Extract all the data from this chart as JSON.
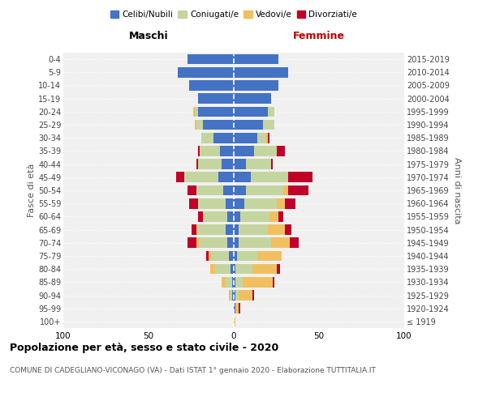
{
  "age_groups": [
    "100+",
    "95-99",
    "90-94",
    "85-89",
    "80-84",
    "75-79",
    "70-74",
    "65-69",
    "60-64",
    "55-59",
    "50-54",
    "45-49",
    "40-44",
    "35-39",
    "30-34",
    "25-29",
    "20-24",
    "15-19",
    "10-14",
    "5-9",
    "0-4"
  ],
  "birth_years": [
    "≤ 1919",
    "1920-1924",
    "1925-1929",
    "1930-1934",
    "1935-1939",
    "1940-1944",
    "1945-1949",
    "1950-1954",
    "1955-1959",
    "1960-1964",
    "1965-1969",
    "1970-1974",
    "1975-1979",
    "1980-1984",
    "1985-1989",
    "1990-1994",
    "1995-1999",
    "2000-2004",
    "2005-2009",
    "2010-2014",
    "2015-2019"
  ],
  "colors": {
    "celibi": "#4472c4",
    "coniugati": "#c5d5a0",
    "vedovi": "#f0c060",
    "divorziati": "#c0002a"
  },
  "maschi": {
    "celibi": [
      0,
      0,
      1,
      1,
      2,
      3,
      4,
      5,
      4,
      5,
      6,
      9,
      7,
      8,
      12,
      18,
      21,
      21,
      26,
      33,
      27
    ],
    "coniugati": [
      0,
      0,
      1,
      4,
      9,
      10,
      16,
      16,
      14,
      16,
      16,
      20,
      14,
      12,
      7,
      4,
      2,
      0,
      0,
      0,
      0
    ],
    "vedovi": [
      0,
      0,
      1,
      2,
      3,
      2,
      2,
      1,
      0,
      0,
      0,
      0,
      0,
      0,
      0,
      1,
      1,
      0,
      0,
      0,
      0
    ],
    "divorziati": [
      0,
      0,
      0,
      0,
      0,
      1,
      5,
      3,
      3,
      5,
      5,
      5,
      1,
      1,
      0,
      0,
      0,
      0,
      0,
      0,
      0
    ]
  },
  "femmine": {
    "celibi": [
      0,
      1,
      1,
      1,
      1,
      2,
      3,
      3,
      4,
      6,
      7,
      10,
      7,
      12,
      14,
      17,
      20,
      22,
      26,
      32,
      26
    ],
    "coniugati": [
      0,
      0,
      2,
      4,
      10,
      12,
      19,
      17,
      17,
      19,
      22,
      22,
      15,
      13,
      5,
      7,
      4,
      0,
      0,
      0,
      0
    ],
    "vedovi": [
      1,
      2,
      8,
      18,
      14,
      14,
      11,
      10,
      5,
      5,
      3,
      0,
      0,
      0,
      1,
      0,
      0,
      0,
      0,
      0,
      0
    ],
    "divorziati": [
      0,
      1,
      1,
      1,
      2,
      0,
      5,
      4,
      3,
      6,
      12,
      14,
      1,
      5,
      1,
      0,
      0,
      0,
      0,
      0,
      0
    ]
  },
  "title": "Popolazione per età, sesso e stato civile - 2020",
  "subtitle": "COMUNE DI CADEGLIANO-VICONAGO (VA) - Dati ISTAT 1° gennaio 2020 - Elaborazione TUTTITALIA.IT",
  "xlabel_left": "Maschi",
  "xlabel_right": "Femmine",
  "ylabel_left": "Fasce di età",
  "ylabel_right": "Anni di nascita",
  "legend_labels": [
    "Celibi/Nubili",
    "Coniugati/e",
    "Vedovi/e",
    "Divorziati/e"
  ],
  "xlim": 100,
  "bg_color": "#ffffff",
  "ax_bg_color": "#f0f0f0",
  "grid_color": "#ffffff",
  "maschi_label_color": "#000000",
  "femmine_label_color": "#c00000",
  "label_fontsize": 9,
  "tick_fontsize": 7,
  "ylabel_fontsize": 8,
  "title_fontsize": 9,
  "subtitle_fontsize": 6.5
}
